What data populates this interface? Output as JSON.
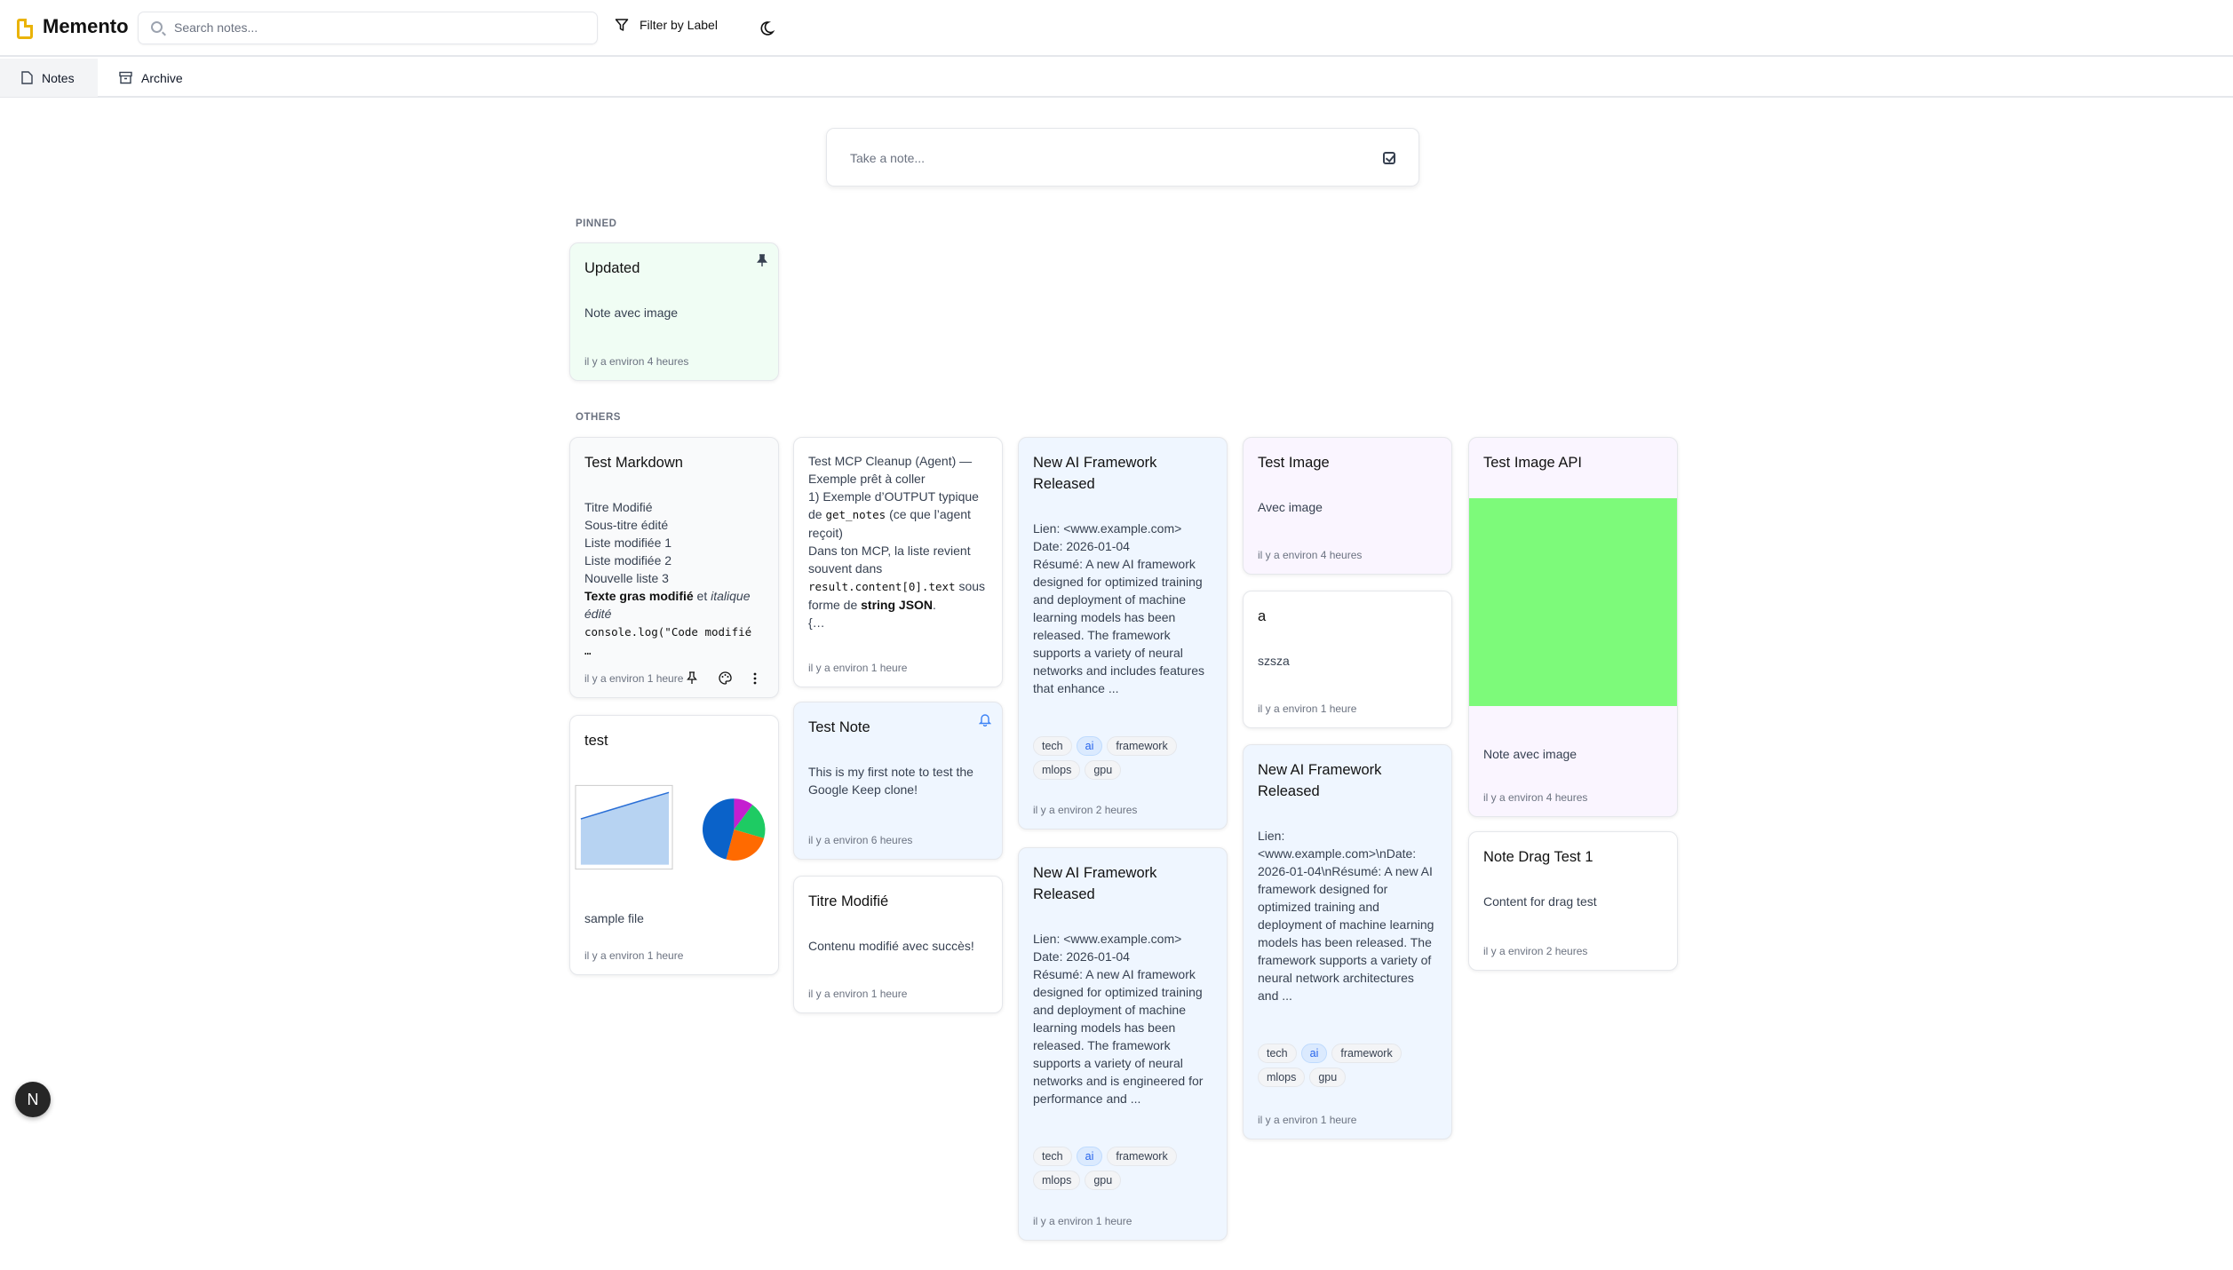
{
  "header": {
    "app_title": "Memento",
    "search_placeholder": "Search notes...",
    "filter_label": "Filter by Label",
    "brand_color": "#eab308"
  },
  "tabs": [
    {
      "label": "Notes",
      "icon": "file-icon",
      "active": true
    },
    {
      "label": "Archive",
      "icon": "archive-icon",
      "active": false
    }
  ],
  "composer": {
    "placeholder": "Take a note..."
  },
  "sections": {
    "pinned": "PINNED",
    "others": "OTHERS"
  },
  "pinned": [
    {
      "title": "Updated",
      "body": [
        [
          "Note avec image"
        ]
      ],
      "time": "il y a environ 4 heures",
      "color": "#f0fdf4",
      "icon": "pin"
    }
  ],
  "others": [
    {
      "title": "Test Markdown",
      "color": "#f9fafb",
      "actions": true,
      "time": "il y a environ 1 heure",
      "body": [
        [
          [
            "Titre Modifié"
          ]
        ],
        [
          [
            "Sous-titre édité"
          ]
        ],
        [
          [
            "Liste modifiée 1"
          ]
        ],
        [
          [
            "Liste modifiée 2"
          ]
        ],
        [
          [
            "Nouvelle liste 3"
          ]
        ],
        [
          [
            "Texte gras modifié",
            "b"
          ],
          [
            " et "
          ],
          [
            "italique édité",
            "i"
          ]
        ],
        [
          [
            "console.log(\"Code modifié …",
            "code"
          ]
        ]
      ]
    },
    {
      "title": "test",
      "color": "#ffffff",
      "image": "chart",
      "body": [
        [
          [
            "sample file"
          ]
        ]
      ],
      "time": "il y a environ 1 heure"
    },
    {
      "title": "",
      "color": "#ffffff",
      "time": "il y a environ 1 heure",
      "body": [
        [
          [
            "Test MCP Cleanup (Agent) — Exemple prêt à coller"
          ]
        ],
        [
          [
            "1) Exemple d’OUTPUT typique de "
          ],
          [
            "get_notes",
            "code"
          ],
          [
            " (ce que l’agent reçoit)"
          ]
        ],
        [
          [
            "Dans ton MCP, la liste revient souvent dans "
          ],
          [
            "result.content[0].text",
            "code"
          ],
          [
            " sous forme de "
          ],
          [
            "string JSON",
            "b"
          ],
          [
            "."
          ]
        ],
        [
          [
            "{…"
          ]
        ]
      ]
    },
    {
      "title": "Test Note",
      "color": "#eff6ff",
      "icon": "bell",
      "body": [
        [
          [
            "This is my first note to test the Google Keep clone!"
          ]
        ]
      ],
      "time": "il y a environ 6 heures"
    },
    {
      "title": "Titre Modifié",
      "color": "#ffffff",
      "body": [
        [
          [
            "Contenu modifié avec succès!"
          ]
        ]
      ],
      "time": "il y a environ 1 heure"
    },
    {
      "title": "New AI Framework Released",
      "color": "#eff6ff",
      "time": "il y a environ 2 heures",
      "body": [
        [
          [
            "Lien: <www.example.com>"
          ]
        ],
        [
          [
            "Date: 2026-01-04"
          ]
        ],
        [
          [
            "Résumé: A new AI framework designed for optimized training and deployment of machine learning models has been released. The framework supports a variety of neural networks and includes features that enhance ..."
          ]
        ]
      ],
      "tags": [
        {
          "label": "tech"
        },
        {
          "label": "ai",
          "highlight": true
        },
        {
          "label": "framework"
        },
        {
          "label": "mlops"
        },
        {
          "label": "gpu"
        }
      ]
    },
    {
      "title": "New AI Framework Released",
      "color": "#eff6ff",
      "time": "il y a environ 1 heure",
      "body": [
        [
          [
            "Lien: <www.example.com>"
          ]
        ],
        [
          [
            "Date: 2026-01-04"
          ]
        ],
        [
          [
            "Résumé: A new AI framework designed for optimized training and deployment of machine learning models has been released. The framework supports a variety of neural networks and is engineered for performance and ..."
          ]
        ]
      ],
      "tags": [
        {
          "label": "tech"
        },
        {
          "label": "ai",
          "highlight": true
        },
        {
          "label": "framework"
        },
        {
          "label": "mlops"
        },
        {
          "label": "gpu"
        }
      ]
    },
    {
      "title": "Test Image",
      "color": "#faf5ff",
      "body": [
        [
          [
            "Avec image"
          ]
        ]
      ],
      "time": "il y a environ 4 heures"
    },
    {
      "title": "a",
      "color": "#ffffff",
      "body": [
        [
          [
            "szsza"
          ]
        ]
      ],
      "time": "il y a environ 1 heure"
    },
    {
      "title": "New AI Framework Released",
      "color": "#eff6ff",
      "time": "il y a environ 1 heure",
      "body": [
        [
          [
            "Lien: <www.example.com>\\nDate: 2026-01-04\\nRésumé: A new AI framework designed for optimized training and deployment of machine learning models has been released. The framework supports a variety of neural network architectures and ..."
          ]
        ]
      ],
      "tags": [
        {
          "label": "tech"
        },
        {
          "label": "ai",
          "highlight": true
        },
        {
          "label": "framework"
        },
        {
          "label": "mlops"
        },
        {
          "label": "gpu"
        }
      ]
    },
    {
      "title": "Test Image API",
      "color": "#faf5ff",
      "image": "green",
      "body": [
        [
          [
            "Note avec image"
          ]
        ]
      ],
      "time": "il y a environ 4 heures"
    },
    {
      "title": "Note Drag Test 1",
      "color": "#ffffff",
      "body": [
        [
          [
            "Content for drag test"
          ]
        ]
      ],
      "time": "il y a environ 2 heures"
    }
  ],
  "avatar": {
    "initial": "N"
  }
}
